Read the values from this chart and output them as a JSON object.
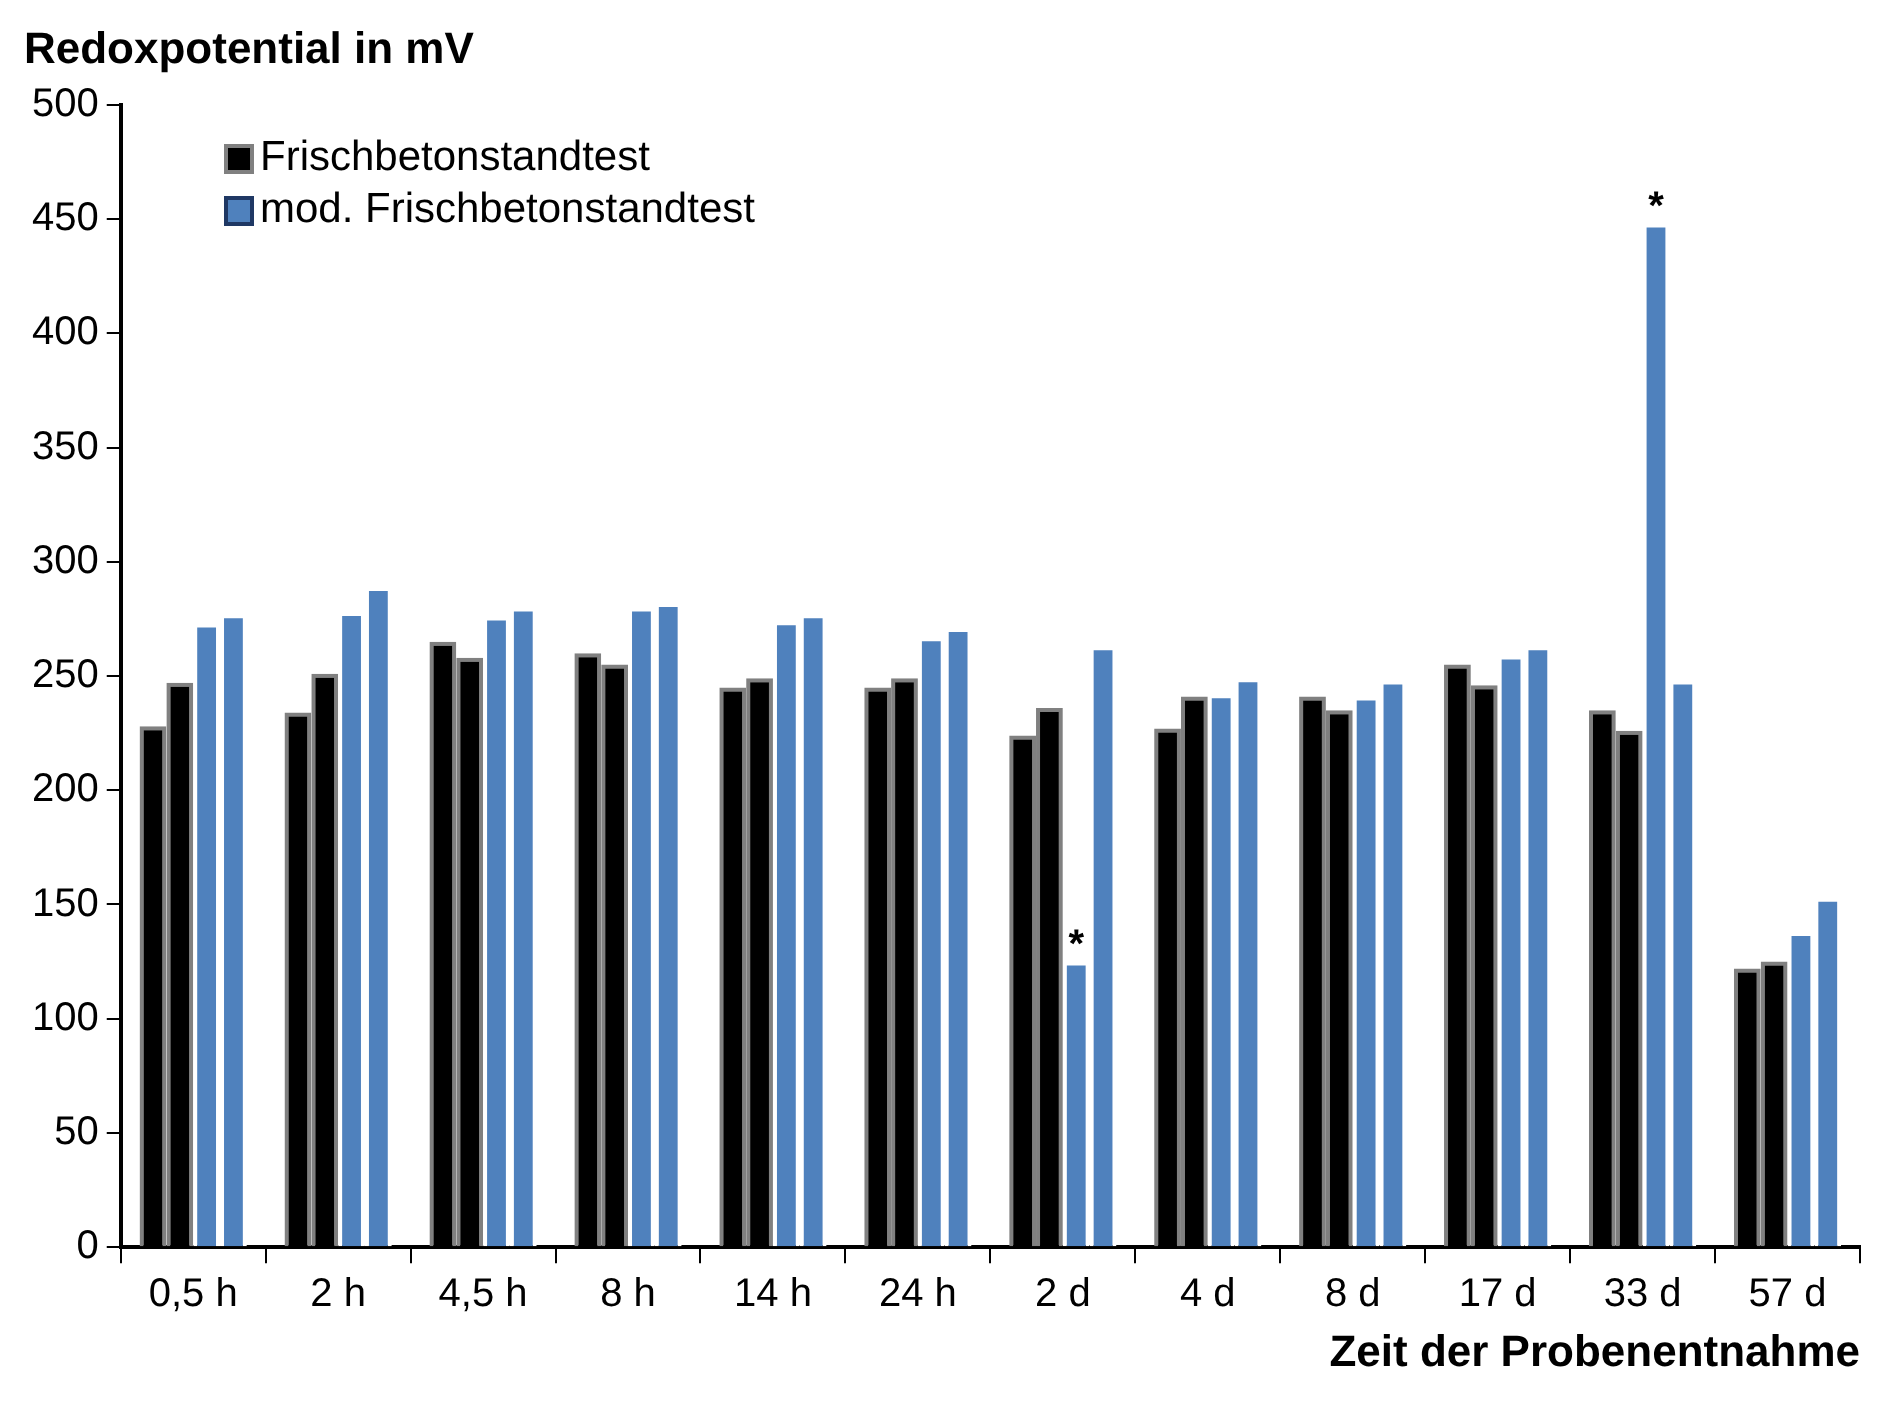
{
  "chart_data": {
    "type": "bar",
    "title": "Redoxpotential in mV",
    "xlabel": "Zeit der Probenentnahme",
    "categories": [
      "0,5 h",
      "2 h",
      "4,5 h",
      "8 h",
      "14 h",
      "24 h",
      "2 d",
      "4 d",
      "8 d",
      "17 d",
      "33 d",
      "57 d"
    ],
    "series": [
      {
        "name": "Frischbetonstandtest",
        "color": "#000000",
        "values": [
          228,
          234,
          265,
          260,
          245,
          245,
          224,
          227,
          241,
          255,
          235,
          122
        ]
      },
      {
        "color": "#000000",
        "values": [
          247,
          251,
          258,
          255,
          249,
          249,
          236,
          241,
          235,
          246,
          226,
          125
        ]
      },
      {
        "name": "mod. Frischbetonstandtest",
        "color": "#4f81bd",
        "values": [
          273,
          278,
          276,
          280,
          274,
          267,
          125,
          242,
          241,
          259,
          448,
          138
        ]
      },
      {
        "color": "#4f81bd",
        "values": [
          277,
          289,
          280,
          282,
          277,
          271,
          263,
          249,
          248,
          263,
          248,
          153
        ]
      }
    ],
    "ylim": [
      0,
      500
    ],
    "yticks": [
      0,
      50,
      100,
      150,
      200,
      250,
      300,
      350,
      400,
      450,
      500
    ],
    "grid": false,
    "legend": "top left",
    "annotations": [
      {
        "text": "*",
        "x": "2 d",
        "y": 125
      },
      {
        "text": "*",
        "x": "33 d",
        "y": 448
      }
    ]
  }
}
